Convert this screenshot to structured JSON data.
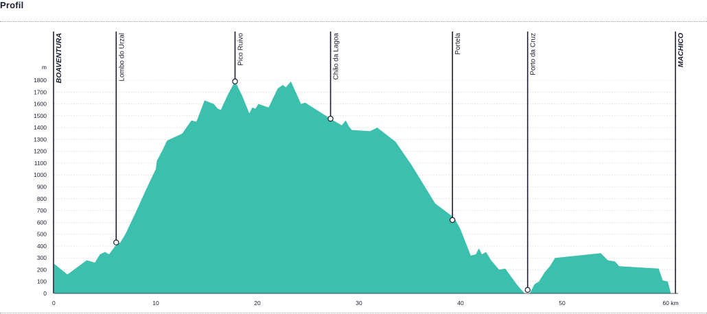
{
  "title": "Profil",
  "chart_data": {
    "type": "area",
    "title": "Profil",
    "ylabel": "m",
    "xunit": "km",
    "xlim": [
      0,
      60.7
    ],
    "ylim": [
      0,
      1800
    ],
    "grid": true,
    "color": "#3dbfae",
    "x_ticks": [
      0,
      10,
      20,
      30,
      40,
      50,
      60
    ],
    "x_tick_labels": [
      "0",
      "10",
      "20",
      "30",
      "40",
      "50",
      "60 km"
    ],
    "y_ticks": [
      0,
      100,
      200,
      300,
      400,
      500,
      600,
      700,
      800,
      900,
      1000,
      1100,
      1200,
      1300,
      1400,
      1500,
      1600,
      1700,
      1800
    ],
    "profile": [
      [
        0,
        250
      ],
      [
        1.3,
        160
      ],
      [
        3.2,
        280
      ],
      [
        4,
        260
      ],
      [
        4.5,
        330
      ],
      [
        5,
        350
      ],
      [
        5.4,
        330
      ],
      [
        6,
        400
      ],
      [
        6.5,
        430
      ],
      [
        7,
        500
      ],
      [
        8,
        680
      ],
      [
        9,
        870
      ],
      [
        10,
        1050
      ],
      [
        10.1,
        1120
      ],
      [
        10.6,
        1200
      ],
      [
        11.1,
        1290
      ],
      [
        12.6,
        1350
      ],
      [
        13.5,
        1460
      ],
      [
        14,
        1450
      ],
      [
        14.8,
        1630
      ],
      [
        15.7,
        1600
      ],
      [
        16.1,
        1560
      ],
      [
        16.4,
        1550
      ],
      [
        17.1,
        1680
      ],
      [
        17.8,
        1790
      ],
      [
        18.5,
        1670
      ],
      [
        19.2,
        1520
      ],
      [
        19.5,
        1570
      ],
      [
        19.8,
        1560
      ],
      [
        20.1,
        1600
      ],
      [
        21.1,
        1570
      ],
      [
        22,
        1730
      ],
      [
        22.5,
        1760
      ],
      [
        22.8,
        1740
      ],
      [
        23.3,
        1790
      ],
      [
        24.3,
        1600
      ],
      [
        24.7,
        1610
      ],
      [
        26,
        1540
      ],
      [
        27.2,
        1475
      ],
      [
        28.3,
        1420
      ],
      [
        28.7,
        1460
      ],
      [
        29,
        1410
      ],
      [
        29.3,
        1380
      ],
      [
        31.1,
        1370
      ],
      [
        31.8,
        1400
      ],
      [
        33.6,
        1280
      ],
      [
        35.2,
        1080
      ],
      [
        37.5,
        760
      ],
      [
        39.2,
        650
      ],
      [
        39.5,
        620
      ],
      [
        40,
        540
      ],
      [
        41,
        320
      ],
      [
        41.5,
        330
      ],
      [
        41.8,
        380
      ],
      [
        42.1,
        330
      ],
      [
        42.5,
        350
      ],
      [
        43,
        280
      ],
      [
        43.8,
        200
      ],
      [
        44.4,
        210
      ],
      [
        45.5,
        80
      ],
      [
        46.3,
        0
      ],
      [
        46.8,
        0
      ],
      [
        47.3,
        80
      ],
      [
        47.7,
        100
      ],
      [
        48.3,
        180
      ],
      [
        48.8,
        230
      ],
      [
        49.3,
        300
      ],
      [
        53.8,
        340
      ],
      [
        54.5,
        280
      ],
      [
        55.2,
        270
      ],
      [
        55.6,
        230
      ],
      [
        59.5,
        210
      ],
      [
        59.9,
        110
      ],
      [
        60.4,
        100
      ],
      [
        60.7,
        0
      ]
    ],
    "waypoints": [
      {
        "name": "BOAVENTURA",
        "km": 0,
        "endpoint": true
      },
      {
        "name": "Lombo do Urzal",
        "km": 6.1,
        "elevation": 430
      },
      {
        "name": "Pico Ruivo",
        "km": 17.8,
        "elevation": 1790
      },
      {
        "name": "Chão da Lagoa",
        "km": 27.2,
        "elevation": 1475
      },
      {
        "name": "Portela",
        "km": 39.2,
        "elevation": 620
      },
      {
        "name": "Porto da Cruz",
        "km": 46.6,
        "elevation": 30
      },
      {
        "name": "MACHICO",
        "km": 61.3,
        "endpoint": true
      }
    ]
  }
}
